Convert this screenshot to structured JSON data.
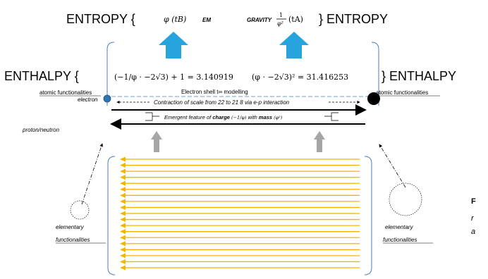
{
  "top": {
    "entropy_left": "ENTROPY {",
    "phi_tb": "φ (tB)",
    "em": "EM",
    "gravity": "GRAVITY",
    "frac_num": "1",
    "frac_den": "φ²",
    "ta": "(tA)",
    "entropy_right": "} ENTROPY"
  },
  "enthalpy": {
    "left": "ENTHALPY {",
    "eq1": "(−1/φ · −2√3) + 1 = 3.140919",
    "eq2": "(φ · −2√3)² = 31.416253",
    "right": "} ENTHALPY"
  },
  "labels": {
    "atomic_left": "atomic functionalities",
    "atomic_right": "atomic functionalities",
    "electron_shell": "Electron shell t∞ modelling",
    "contraction": "Contraction of scale from 22 to 21 8 via e-p interaction",
    "electron": "electron",
    "proton_neutron": "proton/neutron",
    "emergent_pre": "Emergent feature of ",
    "charge": "charge",
    "charge_frac": "(−1/φ)",
    "with_mass": " with ",
    "mass": "mass",
    "mass_val": "(φ²)",
    "elem_left_1": "elementary",
    "elem_left_2": "functionalities",
    "elem_right_1": "elementary",
    "elem_right_2": "functionalities",
    "caption_f": "F",
    "caption_r": "r",
    "caption_a": "a"
  },
  "colors": {
    "arrow_blue": "#27a4de",
    "bracket_blue": "#4a7fc1",
    "dashed_blue": "#7a9bd0",
    "yellow": "#f5b400",
    "grey_arrow": "#a6a6a6",
    "electron_fill": "#2e75b6"
  },
  "yellow_arrow_count": 19
}
